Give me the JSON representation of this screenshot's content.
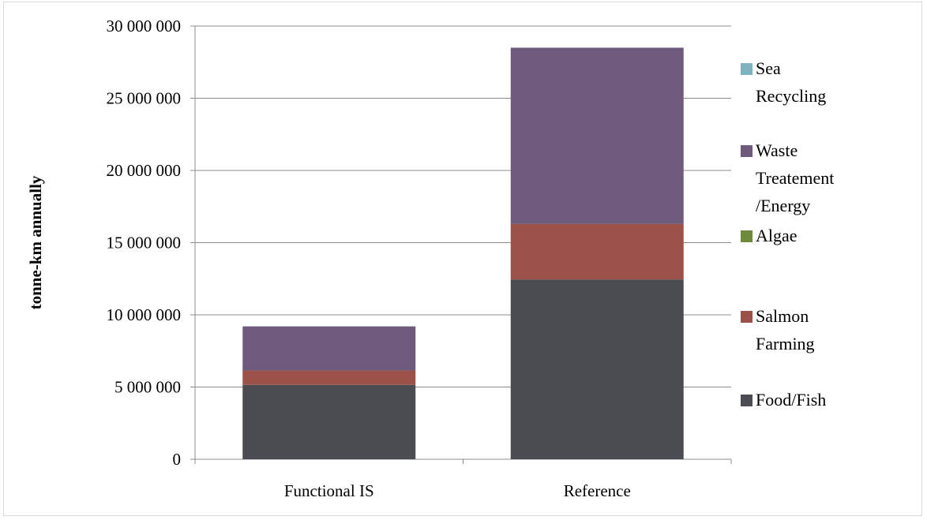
{
  "chart_data": {
    "type": "bar",
    "stacked": true,
    "categories": [
      "Functional IS",
      "Reference"
    ],
    "ylabel": "tonne-km annually",
    "xlabel": "",
    "ylim": [
      0,
      30000000
    ],
    "y_ticks": [
      0,
      5000000,
      10000000,
      15000000,
      20000000,
      25000000,
      30000000
    ],
    "y_tick_labels": [
      "0",
      "5 000 000",
      "10 000 000",
      "15 000 000",
      "20 000 000",
      "25 000 000",
      "30 000 000"
    ],
    "grid": true,
    "legend_position": "right",
    "series": [
      {
        "name": "Food/Fish",
        "color": "#4b4b52",
        "values": [
          5150000,
          12450000
        ]
      },
      {
        "name": "Salmon Farming",
        "color": "#9c5249",
        "values": [
          1000000,
          3850000
        ]
      },
      {
        "name": "Algae",
        "color": "#6f8a3d",
        "values": [
          0,
          0
        ]
      },
      {
        "name": "Waste Treatement /Energy",
        "color": "#6e5a7d",
        "values": [
          3050000,
          12200000
        ]
      },
      {
        "name": "Sea Recycling",
        "color": "#7fb3bf",
        "values": [
          0,
          0
        ]
      }
    ],
    "legend": [
      {
        "lines": [
          "Sea",
          "Recycling"
        ],
        "color": "#7fb3bf"
      },
      {
        "lines": [
          "Waste",
          "Treatement",
          "/Energy"
        ],
        "color": "#6e5a7d"
      },
      {
        "lines": [
          "Algae"
        ],
        "color": "#6f8a3d"
      },
      {
        "lines": [
          "Salmon",
          "Farming"
        ],
        "color": "#9c5249"
      },
      {
        "lines": [
          "Food/Fish"
        ],
        "color": "#4b4b52"
      }
    ]
  }
}
